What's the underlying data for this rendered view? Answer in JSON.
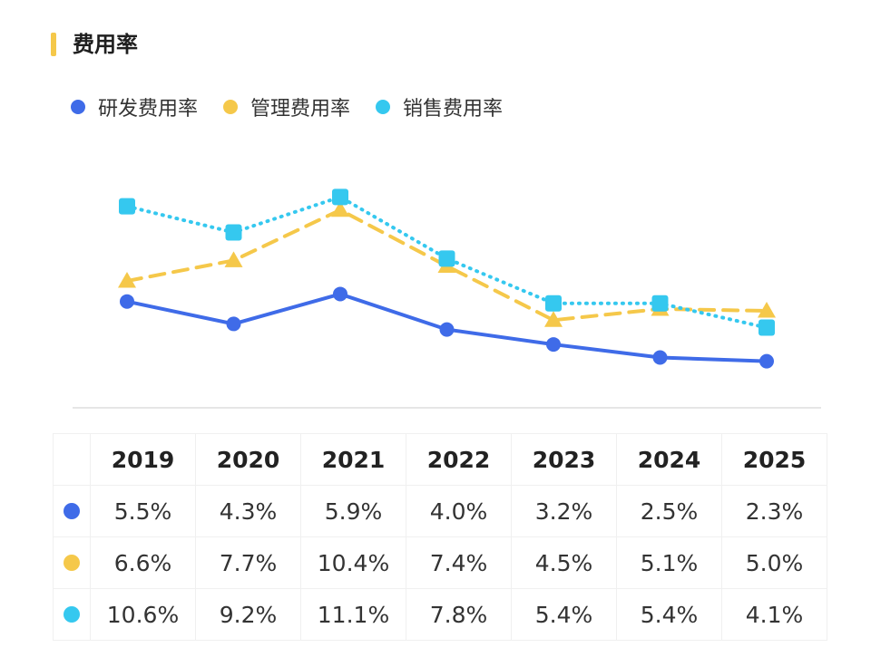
{
  "title": "费用率",
  "colors": {
    "rd": "#3F6BE8",
    "mgmt": "#F5C84A",
    "sales": "#35C8EF"
  },
  "chart_data": {
    "type": "line",
    "x": [
      "2019",
      "2020",
      "2021",
      "2022",
      "2023",
      "2024",
      "2025"
    ],
    "series": [
      {
        "name": "研发费用率",
        "values": [
          5.5,
          4.3,
          5.9,
          4.0,
          3.2,
          2.5,
          2.3
        ],
        "labels": [
          "5.5%",
          "4.3%",
          "5.9%",
          "4.0%",
          "3.2%",
          "2.5%",
          "2.3%"
        ],
        "color": "#3F6BE8",
        "marker": "circle",
        "line_style": "solid"
      },
      {
        "name": "管理费用率",
        "values": [
          6.6,
          7.7,
          10.4,
          7.4,
          4.5,
          5.1,
          5.0
        ],
        "labels": [
          "6.6%",
          "7.7%",
          "10.4%",
          "7.4%",
          "4.5%",
          "5.1%",
          "5.0%"
        ],
        "color": "#F5C84A",
        "marker": "triangle",
        "line_style": "dashed"
      },
      {
        "name": "销售费用率",
        "values": [
          10.6,
          9.2,
          11.1,
          7.8,
          5.4,
          5.4,
          4.1
        ],
        "labels": [
          "10.6%",
          "9.2%",
          "11.1%",
          "7.8%",
          "5.4%",
          "5.4%",
          "4.1%"
        ],
        "color": "#35C8EF",
        "marker": "square",
        "line_style": "dotted"
      }
    ],
    "ylim": [
      0,
      12
    ],
    "grid": false,
    "legend": "top-left"
  }
}
